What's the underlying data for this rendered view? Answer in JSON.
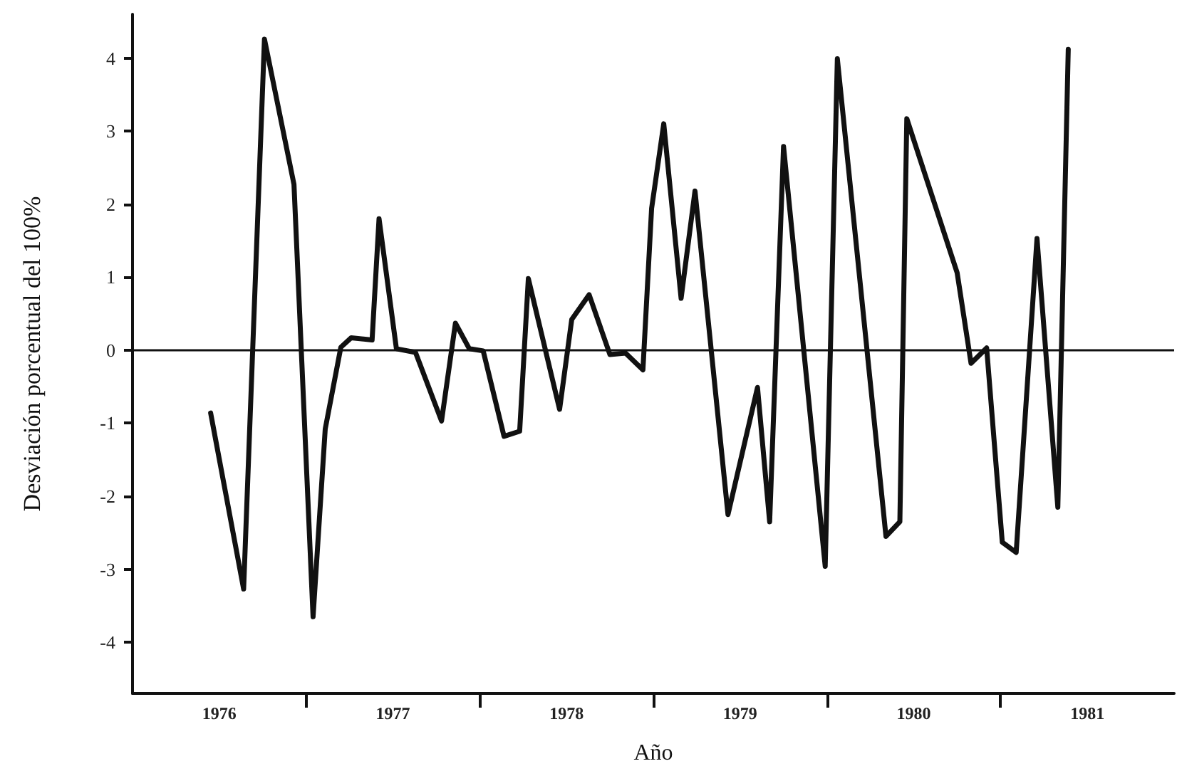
{
  "chart_data": {
    "type": "line",
    "xlabel": "Año",
    "ylabel": "Desviación porcentual del 100%",
    "x": [
      1976.45,
      1976.64,
      1976.76,
      1976.93,
      1977.04,
      1977.11,
      1977.2,
      1977.26,
      1977.38,
      1977.42,
      1977.52,
      1977.63,
      1977.78,
      1977.86,
      1977.94,
      1978.02,
      1978.14,
      1978.23,
      1978.28,
      1978.46,
      1978.53,
      1978.63,
      1978.75,
      1978.84,
      1978.94,
      1978.99,
      1979.06,
      1979.16,
      1979.24,
      1979.43,
      1979.6,
      1979.67,
      1979.75,
      1979.99,
      1980.06,
      1980.34,
      1980.42,
      1980.46,
      1980.75,
      1980.83,
      1980.92,
      1981.01,
      1981.09,
      1981.21,
      1981.33,
      1981.39
    ],
    "series": [
      {
        "color": "#111111",
        "values": [
          -0.86,
          -3.27,
          4.26,
          2.27,
          -3.65,
          -1.08,
          0.04,
          0.17,
          0.14,
          1.8,
          0.02,
          -0.03,
          -0.97,
          0.37,
          0.02,
          -0.01,
          -1.18,
          -1.11,
          0.98,
          -0.81,
          0.42,
          0.76,
          -0.06,
          -0.04,
          -0.27,
          1.94,
          3.1,
          0.71,
          2.18,
          -2.25,
          -0.51,
          -2.35,
          2.79,
          -2.96,
          3.99,
          -2.55,
          -2.35,
          3.17,
          1.06,
          -0.18,
          0.03,
          -2.63,
          -2.77,
          1.53,
          -2.15,
          4.12
        ]
      }
    ],
    "xlim": [
      1976,
      1982
    ],
    "xticks": [
      {
        "value": 1976.5,
        "label": "1976"
      },
      {
        "value": 1977,
        "label": null
      },
      {
        "value": 1977.5,
        "label": "1977"
      },
      {
        "value": 1978,
        "label": null
      },
      {
        "value": 1978.5,
        "label": "1978"
      },
      {
        "value": 1979,
        "label": null
      },
      {
        "value": 1979.5,
        "label": "1979"
      },
      {
        "value": 1980,
        "label": null
      },
      {
        "value": 1980.5,
        "label": "1980"
      },
      {
        "value": 1981,
        "label": null
      },
      {
        "value": 1981.5,
        "label": "1981"
      }
    ],
    "ylim": [
      -4.7,
      4.6
    ],
    "yticks": [
      -4,
      -3,
      -2,
      -1,
      0,
      1,
      2,
      3,
      4
    ],
    "ref_lines": [
      {
        "axis": "y",
        "value": 0,
        "color": "#111111"
      }
    ],
    "grid": false,
    "marker": "none",
    "line_style": "solid"
  }
}
